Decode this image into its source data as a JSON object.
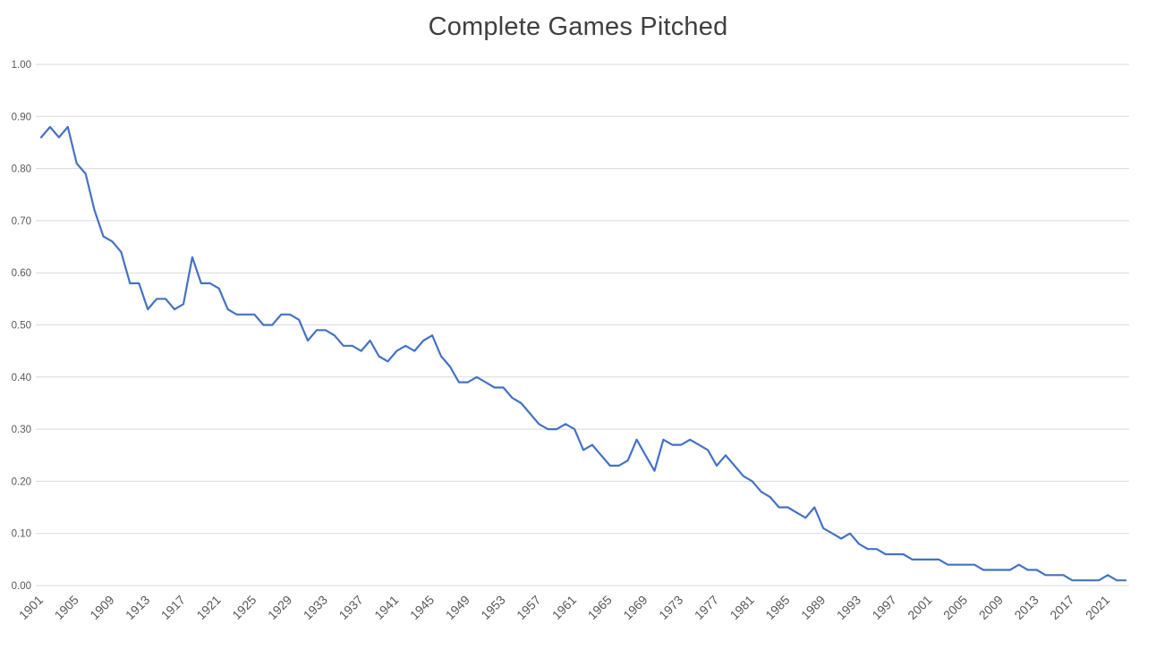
{
  "chart_data": {
    "type": "line",
    "title": "Complete Games Pitched",
    "xlabel": "",
    "ylabel": "",
    "ylim": [
      0.0,
      1.0
    ],
    "y_tick_step": 0.1,
    "y_tick_labels": [
      "0.00",
      "0.10",
      "0.20",
      "0.30",
      "0.40",
      "0.50",
      "0.60",
      "0.70",
      "0.80",
      "0.90",
      "1.00"
    ],
    "x_tick_labels": [
      "1901",
      "1905",
      "1909",
      "1913",
      "1917",
      "1921",
      "1925",
      "1929",
      "1933",
      "1937",
      "1941",
      "1945",
      "1949",
      "1953",
      "1957",
      "1961",
      "1965",
      "1969",
      "1973",
      "1977",
      "1981",
      "1985",
      "1989",
      "1993",
      "1997",
      "2001",
      "2005",
      "2009",
      "2013",
      "2017",
      "2021"
    ],
    "grid": "horizontal",
    "legend": "none",
    "line_color": "#4472C4",
    "grid_color": "#D9D9D9",
    "axis_label_color": "#595959",
    "title_color": "#404040",
    "background": "#FFFFFF",
    "x": [
      1901,
      1902,
      1903,
      1904,
      1905,
      1906,
      1907,
      1908,
      1909,
      1910,
      1911,
      1912,
      1913,
      1914,
      1915,
      1916,
      1917,
      1918,
      1919,
      1920,
      1921,
      1922,
      1923,
      1924,
      1925,
      1926,
      1927,
      1928,
      1929,
      1930,
      1931,
      1932,
      1933,
      1934,
      1935,
      1936,
      1937,
      1938,
      1939,
      1940,
      1941,
      1942,
      1943,
      1944,
      1945,
      1946,
      1947,
      1948,
      1949,
      1950,
      1951,
      1952,
      1953,
      1954,
      1955,
      1956,
      1957,
      1958,
      1959,
      1960,
      1961,
      1962,
      1963,
      1964,
      1965,
      1966,
      1967,
      1968,
      1969,
      1970,
      1971,
      1972,
      1973,
      1974,
      1975,
      1976,
      1977,
      1978,
      1979,
      1980,
      1981,
      1982,
      1983,
      1984,
      1985,
      1986,
      1987,
      1988,
      1989,
      1990,
      1991,
      1992,
      1993,
      1994,
      1995,
      1996,
      1997,
      1998,
      1999,
      2000,
      2001,
      2002,
      2003,
      2004,
      2005,
      2006,
      2007,
      2008,
      2009,
      2010,
      2011,
      2012,
      2013,
      2014,
      2015,
      2016,
      2017,
      2018,
      2019,
      2020,
      2021,
      2022,
      2023
    ],
    "series": [
      {
        "name": "Complete Games Pitched",
        "values": [
          0.86,
          0.88,
          0.86,
          0.88,
          0.81,
          0.79,
          0.72,
          0.67,
          0.66,
          0.64,
          0.58,
          0.58,
          0.53,
          0.55,
          0.55,
          0.53,
          0.54,
          0.63,
          0.58,
          0.58,
          0.57,
          0.53,
          0.52,
          0.52,
          0.52,
          0.5,
          0.5,
          0.52,
          0.52,
          0.51,
          0.47,
          0.49,
          0.49,
          0.48,
          0.46,
          0.46,
          0.45,
          0.47,
          0.44,
          0.43,
          0.45,
          0.46,
          0.45,
          0.47,
          0.48,
          0.44,
          0.42,
          0.39,
          0.39,
          0.4,
          0.39,
          0.38,
          0.38,
          0.36,
          0.35,
          0.33,
          0.31,
          0.3,
          0.3,
          0.31,
          0.3,
          0.26,
          0.27,
          0.25,
          0.23,
          0.23,
          0.24,
          0.28,
          0.25,
          0.22,
          0.28,
          0.27,
          0.27,
          0.28,
          0.27,
          0.26,
          0.23,
          0.25,
          0.23,
          0.21,
          0.2,
          0.18,
          0.17,
          0.15,
          0.15,
          0.14,
          0.13,
          0.15,
          0.11,
          0.1,
          0.09,
          0.1,
          0.08,
          0.07,
          0.07,
          0.06,
          0.06,
          0.06,
          0.05,
          0.05,
          0.05,
          0.05,
          0.04,
          0.04,
          0.04,
          0.04,
          0.03,
          0.03,
          0.03,
          0.03,
          0.04,
          0.03,
          0.03,
          0.02,
          0.02,
          0.02,
          0.01,
          0.01,
          0.01,
          0.01,
          0.02,
          0.01,
          0.01
        ]
      }
    ]
  }
}
